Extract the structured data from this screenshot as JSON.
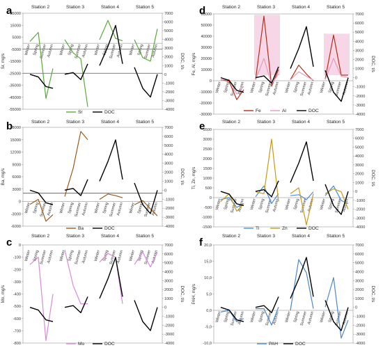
{
  "figure": {
    "season_labels": [
      "Winter",
      "Spring",
      "Summer",
      "Autumn"
    ],
    "stations": [
      "Station 2",
      "Station 3",
      "Station 4",
      "Station 5"
    ]
  },
  "colors": {
    "doc": "#000000",
    "sr": "#5aaa3a",
    "ba": "#9a5a1c",
    "mo": "#d98ad9",
    "fe": "#b23018",
    "al": "#e59ac0",
    "ti": "#4a8ed8",
    "zn": "#c79b16",
    "pah": "#4a88cf",
    "fe_band": "#f7d7e7"
  },
  "chart_data": [
    {
      "panel": "a",
      "type": "line",
      "ylabel": "Sr, mg/s",
      "y2label": "DOC, t/s",
      "ylim": [
        -55000,
        25000
      ],
      "yticks": [
        -55000,
        -45000,
        -35000,
        -25000,
        -15000,
        -5000,
        5000,
        15000,
        25000
      ],
      "y2lim": [
        -4000,
        7000
      ],
      "y2ticks": [
        -4000,
        -3000,
        -2000,
        -1000,
        0,
        1000,
        2000,
        3000,
        4000,
        5000,
        6000,
        7000
      ],
      "hlines_left": [
        -5000,
        -25000
      ],
      "series": [
        {
          "name": "Sr",
          "axis": "left",
          "color_key": "sr",
          "stations": [
            [
              1500,
              9000,
              -46000,
              -21000
            ],
            [
              3000,
              -8000,
              -13000,
              -53000
            ],
            [
              3000,
              19000,
              4000,
              2000
            ],
            [
              3000,
              -12000,
              -15000,
              12000
            ]
          ]
        },
        {
          "name": "DOC",
          "axis": "right",
          "color_key": "doc",
          "stations": [
            [
              0,
              -300,
              -1400,
              -1600
            ],
            [
              0,
              200,
              -600,
              1200
            ],
            [
              1000,
              3200,
              5600,
              1200
            ],
            [
              800,
              -1600,
              -2600,
              0
            ]
          ]
        }
      ],
      "legend": [
        "Sr",
        "DOC"
      ]
    },
    {
      "panel": "b",
      "type": "line",
      "ylabel": "Ba, mg/s",
      "y2label": "DOC, t/s",
      "ylim": [
        -6000,
        18000
      ],
      "yticks": [
        -6000,
        -3000,
        0,
        3000,
        6000,
        9000,
        12000,
        15000,
        18000
      ],
      "y2lim": [
        -4000,
        7000
      ],
      "y2ticks": [
        -4000,
        -3000,
        -2000,
        -1000,
        0,
        1000,
        2000,
        3000,
        4000,
        5000,
        6000,
        7000
      ],
      "hlines_left": [
        2000
      ],
      "series": [
        {
          "name": "Ba",
          "axis": "left",
          "color_key": "ba",
          "stations": [
            [
              -700,
              500,
              -4800,
              -3200
            ],
            [
              1200,
              8000,
              17000,
              15000
            ],
            [
              500,
              1800,
              1400,
              900
            ],
            [
              -800,
              200,
              -1800,
              -3500
            ]
          ]
        },
        {
          "name": "DOC",
          "axis": "right",
          "color_key": "doc",
          "stations": [
            [
              0,
              -300,
              -1400,
              -1600
            ],
            [
              0,
              200,
              -600,
              1200
            ],
            [
              1000,
              3200,
              5600,
              1200
            ],
            [
              800,
              -1600,
              -2600,
              0
            ]
          ]
        }
      ],
      "legend": [
        "Ba",
        "DOC"
      ]
    },
    {
      "panel": "c",
      "type": "line",
      "ylabel": "Mo, mg/s",
      "y2label": "DOC, t/s",
      "ylim": [
        -800,
        0
      ],
      "yticks": [
        -800,
        -700,
        -600,
        -500,
        -400,
        -300,
        -200,
        -100,
        0
      ],
      "y2lim": [
        -4000,
        7000
      ],
      "y2ticks": [
        -4000,
        -3000,
        -2000,
        -1000,
        0,
        1000,
        2000,
        3000,
        4000,
        5000,
        6000,
        7000
      ],
      "hlines_left": [],
      "series": [
        {
          "name": "Mo",
          "axis": "left",
          "color_key": "mo",
          "stations": [
            [
              -160,
              -100,
              -780,
              -400
            ],
            [
              -40,
              -330,
              -480,
              -480
            ],
            [
              -140,
              -70,
              -100,
              -480
            ],
            [
              -160,
              -60,
              -180,
              -60
            ]
          ]
        },
        {
          "name": "DOC",
          "axis": "right",
          "color_key": "doc",
          "stations": [
            [
              0,
              -300,
              -1400,
              -1600
            ],
            [
              0,
              200,
              -600,
              1200
            ],
            [
              1000,
              3200,
              5600,
              1200
            ],
            [
              800,
              -1600,
              -2600,
              0
            ]
          ]
        }
      ],
      "legend": [
        "Mo",
        "DOC"
      ]
    },
    {
      "panel": "d",
      "type": "line",
      "ylabel": "Fe, Al, mg/s",
      "y2label": "DOC, t/s",
      "ylim": [
        -30000,
        60000
      ],
      "yticks": [
        -30000,
        -20000,
        -10000,
        0,
        10000,
        20000,
        30000,
        40000,
        50000,
        60000
      ],
      "y2lim": [
        -4000,
        7000
      ],
      "y2ticks": [
        -4000,
        -3000,
        -2000,
        -1000,
        0,
        1000,
        2000,
        3000,
        4000,
        5000,
        6000,
        7000
      ],
      "hlines_left": [],
      "series": [
        {
          "name": "Fe",
          "axis": "left",
          "color_key": "fe",
          "stations": [
            [
              1000,
              -500,
              -17000,
              -8000
            ],
            [
              1000,
              58000,
              -5000,
              10000
            ],
            [
              1000,
              14000,
              6000,
              0
            ],
            [
              1500,
              41000,
              5000,
              5000
            ]
          ]
        },
        {
          "name": "Al",
          "axis": "left",
          "color_key": "al",
          "stations": [
            [
              700,
              1000,
              -12000,
              -5000
            ],
            [
              800,
              20000,
              -3000,
              6000
            ],
            [
              800,
              8000,
              4000,
              500
            ],
            [
              1000,
              20000,
              4000,
              3000
            ]
          ]
        },
        {
          "name": "DOC",
          "axis": "right",
          "color_key": "doc",
          "stations": [
            [
              0,
              -300,
              -1400,
              -1600
            ],
            [
              0,
              200,
              -600,
              1200
            ],
            [
              1000,
              3200,
              5600,
              1200
            ],
            [
              800,
              -1600,
              -2600,
              0
            ]
          ]
        }
      ],
      "legend": [
        "Fe",
        "Al",
        "DOC"
      ]
    },
    {
      "panel": "e",
      "type": "line",
      "ylabel": "Ti, Zn, mg/s",
      "y2label": "DOC, t/s",
      "ylim": [
        -1500,
        3500
      ],
      "yticks": [
        -1500,
        -1000,
        -500,
        0,
        500,
        1000,
        1500,
        2000,
        2500,
        3000,
        3500
      ],
      "y2lim": [
        -4000,
        7000
      ],
      "y2ticks": [
        -4000,
        -3000,
        -2000,
        -1000,
        0,
        1000,
        2000,
        3000,
        4000,
        5000,
        6000,
        7000
      ],
      "hlines_left": [],
      "series": [
        {
          "name": "Ti",
          "axis": "left",
          "color_key": "ti",
          "stations": [
            [
              -100,
              0,
              -500,
              -300
            ],
            [
              50,
              600,
              -300,
              200
            ],
            [
              100,
              150,
              -100,
              300
            ],
            [
              100,
              600,
              -150,
              -300
            ]
          ]
        },
        {
          "name": "Zn",
          "axis": "left",
          "color_key": "zn",
          "stations": [
            [
              -200,
              200,
              -700,
              -300
            ],
            [
              300,
              200,
              3000,
              -200
            ],
            [
              200,
              500,
              -1400,
              200
            ],
            [
              200,
              450,
              300,
              -600
            ]
          ]
        },
        {
          "name": "DOC",
          "axis": "right",
          "color_key": "doc",
          "stations": [
            [
              0,
              -300,
              -1400,
              -1600
            ],
            [
              0,
              200,
              -600,
              1200
            ],
            [
              1000,
              3200,
              5600,
              1200
            ],
            [
              800,
              -1600,
              -2600,
              0
            ]
          ]
        }
      ],
      "legend": [
        "Ti",
        "Zn",
        "DOC"
      ]
    },
    {
      "panel": "f",
      "type": "line",
      "ylabel": "PAH, mg/s",
      "y2label": "DOC, t/s",
      "ylim": [
        -10.0,
        20.0
      ],
      "yticks": [
        -10.0,
        -5.0,
        0.0,
        5.0,
        10.0,
        15.0,
        20.0
      ],
      "yticklabels": [
        "-10,0",
        "-5,0",
        "0,0",
        "5,0",
        "10,0",
        "15,0",
        "20,0"
      ],
      "y2lim": [
        -4000,
        7000
      ],
      "y2ticks": [
        -4000,
        -3000,
        -2000,
        -1000,
        0,
        1000,
        2000,
        3000,
        4000,
        5000,
        6000,
        7000
      ],
      "hlines_left": [],
      "series": [
        {
          "name": "PAH",
          "axis": "left",
          "color_key": "pah",
          "stations": [
            [
              -0.5,
              0.0,
              -3.5,
              -2.5
            ],
            [
              0.5,
              0.5,
              -4.5,
              1.0
            ],
            [
              0.0,
              15.5,
              11.5,
              0.5
            ],
            [
              1.0,
              10.0,
              -8.5,
              -3.0
            ]
          ]
        },
        {
          "name": "DOC",
          "axis": "right",
          "color_key": "doc",
          "stations": [
            [
              0,
              -300,
              -1400,
              -1600
            ],
            [
              0,
              200,
              -600,
              1200
            ],
            [
              1000,
              3200,
              5600,
              1200
            ],
            [
              800,
              -1600,
              -2600,
              0
            ]
          ]
        }
      ],
      "legend": [
        "PAH",
        "DOC"
      ]
    }
  ]
}
